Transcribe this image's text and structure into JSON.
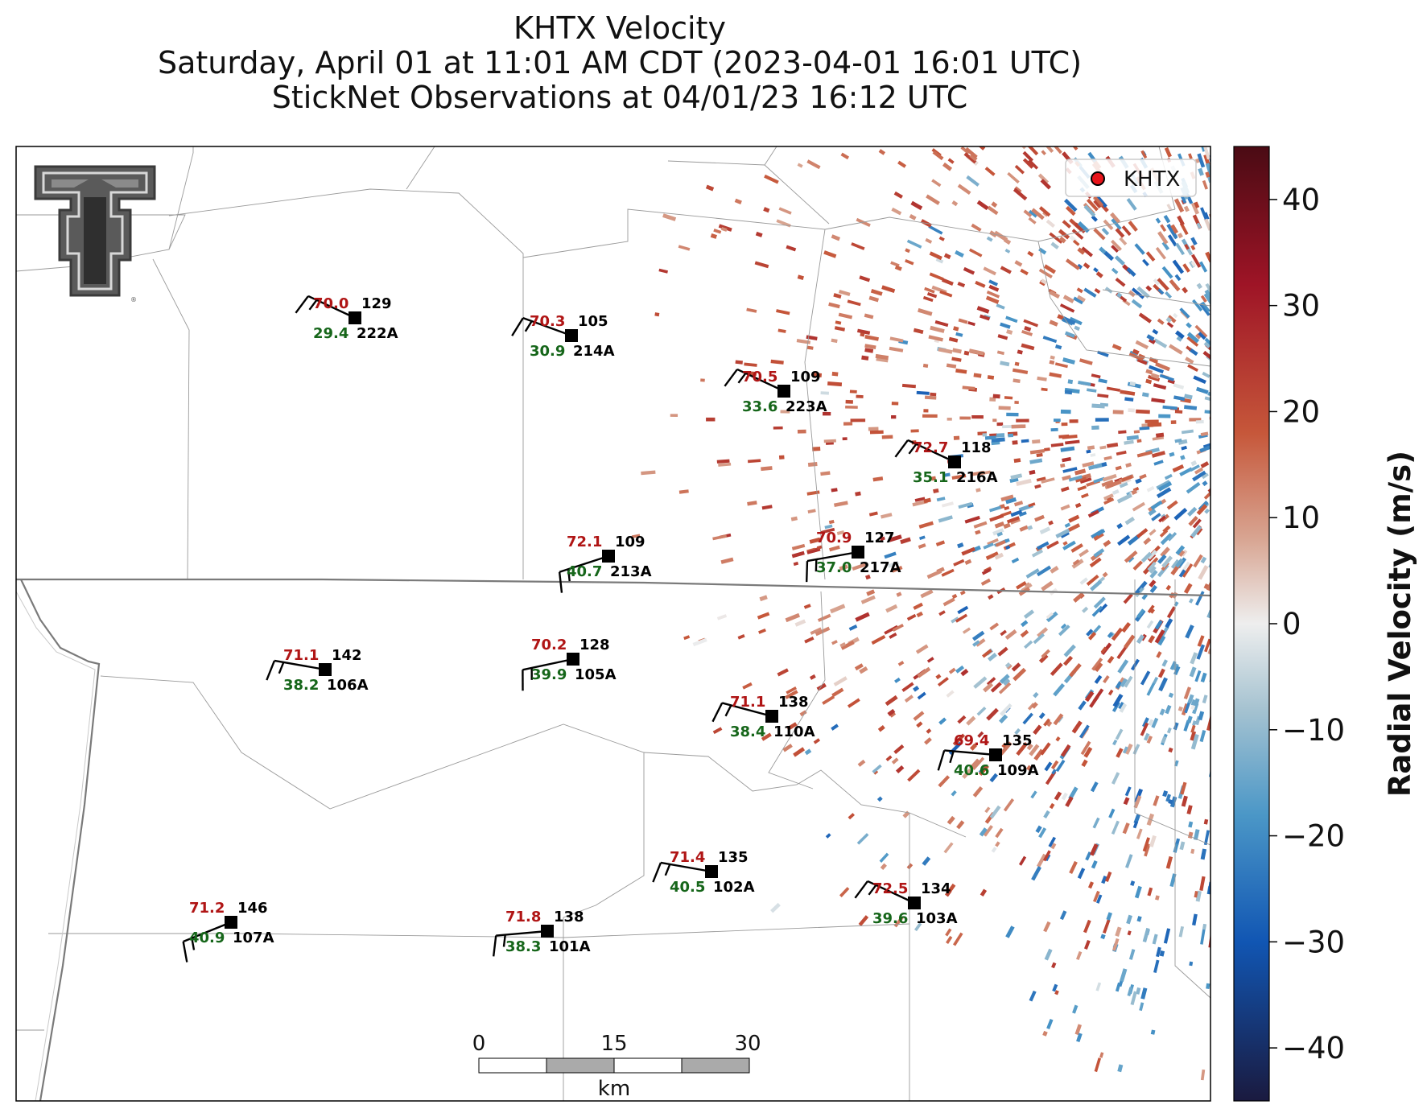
{
  "title": {
    "line1": "KHTX Velocity",
    "line2": "Saturday, April 01 at 11:01 AM CDT (2023-04-01 16:01 UTC)",
    "line3": "StickNet Observations at 04/01/23 16:12 UTC"
  },
  "legend": {
    "label": "KHTX",
    "marker_color": "#e8141a"
  },
  "colorbar": {
    "label": "Radial Velocity (m/s)",
    "range": [
      -45,
      45
    ],
    "ticks": [
      "40",
      "30",
      "20",
      "10",
      "0",
      "−10",
      "−20",
      "−30",
      "−40"
    ],
    "stops": [
      {
        "v": -45,
        "c": "#1a1a3f"
      },
      {
        "v": -30,
        "c": "#1156b3"
      },
      {
        "v": -18,
        "c": "#4b97c7"
      },
      {
        "v": -8,
        "c": "#a6c3d1"
      },
      {
        "v": 0,
        "c": "#eeeeee"
      },
      {
        "v": 8,
        "c": "#d8a592"
      },
      {
        "v": 18,
        "c": "#c6573a"
      },
      {
        "v": 32,
        "c": "#9e1426"
      },
      {
        "v": 45,
        "c": "#4a0b14"
      }
    ]
  },
  "scalebar": {
    "labels": [
      "0",
      "15",
      "30"
    ],
    "unit": "km"
  },
  "colors": {
    "temp": "#b01515",
    "dew": "#16661a",
    "station": "#000000"
  },
  "stations": [
    {
      "id": "222A",
      "temp": "70.0",
      "dew": "29.4",
      "val": "129",
      "dir": 295
    },
    {
      "id": "214A",
      "temp": "70.3",
      "dew": "30.9",
      "val": "105",
      "dir": 290
    },
    {
      "id": "223A",
      "temp": "70.5",
      "dew": "33.6",
      "val": "109",
      "dir": 295
    },
    {
      "id": "216A",
      "temp": "72.7",
      "dew": "35.1",
      "val": "118",
      "dir": 295
    },
    {
      "id": "213A",
      "temp": "72.1",
      "dew": "40.7",
      "val": "109",
      "dir": 252
    },
    {
      "id": "217A",
      "temp": "70.9",
      "dew": "37.0",
      "val": "127",
      "dir": 260
    },
    {
      "id": "106A",
      "temp": "71.1",
      "dew": "38.2",
      "val": "142",
      "dir": 280
    },
    {
      "id": "105A",
      "temp": "70.2",
      "dew": "39.9",
      "val": "128",
      "dir": 258
    },
    {
      "id": "110A",
      "temp": "71.1",
      "dew": "38.4",
      "val": "138",
      "dir": 285
    },
    {
      "id": "109A",
      "temp": "69.4",
      "dew": "40.6",
      "val": "135",
      "dir": 275
    },
    {
      "id": "102A",
      "temp": "71.4",
      "dew": "40.5",
      "val": "135",
      "dir": 280
    },
    {
      "id": "103A",
      "temp": "72.5",
      "dew": "39.6",
      "val": "134",
      "dir": 295
    },
    {
      "id": "107A",
      "temp": "71.2",
      "dew": "40.9",
      "val": "146",
      "dir": 248
    },
    {
      "id": "101A",
      "temp": "71.8",
      "dew": "38.3",
      "val": "138",
      "dir": 265
    }
  ]
}
